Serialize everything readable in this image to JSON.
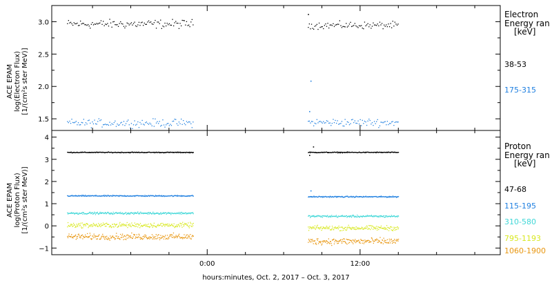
{
  "chart_data": [
    {
      "type": "scatter",
      "name": "electron",
      "ylabel": [
        "ACE EPAM",
        "log(Electron Flux)",
        "[1/(cm²s ster MeV)]"
      ],
      "ylim": [
        1.32,
        3.25
      ],
      "yticks": [
        1.5,
        2.0,
        2.5,
        3.0
      ],
      "ytick_labels": [
        "1.5",
        "2.0",
        "2.5",
        "3.0"
      ],
      "legend_title": [
        "Electron",
        "Energy ran",
        "[keV]"
      ],
      "series": [
        {
          "name": "38-53",
          "color": "#000000",
          "segments": [
            {
              "x_start": -11.0,
              "x_end": -1.1,
              "mean": 2.97,
              "spread": 0.1
            },
            {
              "x_start": 7.9,
              "x_end": 15.0,
              "mean": 2.95,
              "spread": 0.08
            }
          ],
          "extra_points": [
            {
              "x": 7.9,
              "y": 3.12
            }
          ]
        },
        {
          "name": "175-315",
          "color": "#1e7fe0",
          "segments": [
            {
              "x_start": -11.0,
              "x_end": -1.1,
              "mean": 1.44,
              "spread": 0.09
            },
            {
              "x_start": 7.9,
              "x_end": 15.0,
              "mean": 1.45,
              "spread": 0.09
            }
          ],
          "extra_points": [
            {
              "x": 8.1,
              "y": 2.09
            },
            {
              "x": 8.0,
              "y": 1.62
            }
          ]
        }
      ]
    },
    {
      "type": "scatter",
      "name": "proton",
      "ylabel": [
        "ACE EPAM",
        "log(Proton Flux)",
        "[1/(cm²s ster MeV)]"
      ],
      "ylim": [
        -1.3,
        4.3
      ],
      "yticks": [
        -1,
        0,
        1,
        2,
        3,
        4
      ],
      "ytick_labels": [
        "−1",
        "0",
        "1",
        "2",
        "3",
        "4"
      ],
      "legend_title": [
        "Proton",
        "Energy ran",
        "[keV]"
      ],
      "series": [
        {
          "name": "47-68",
          "color": "#000000",
          "segments": [
            {
              "x_start": -11.0,
              "x_end": -1.1,
              "mean": 3.33,
              "spread": 0.03
            },
            {
              "x_start": 7.9,
              "x_end": 15.0,
              "mean": 3.33,
              "spread": 0.03
            }
          ],
          "extra_points": [
            {
              "x": 8.3,
              "y": 3.58
            },
            {
              "x": 8.0,
              "y": 3.2
            }
          ]
        },
        {
          "name": "115-195",
          "color": "#1e7fe0",
          "segments": [
            {
              "x_start": -11.0,
              "x_end": -1.1,
              "mean": 1.37,
              "spread": 0.04
            },
            {
              "x_start": 7.9,
              "x_end": 15.0,
              "mean": 1.33,
              "spread": 0.04
            }
          ],
          "extra_points": [
            {
              "x": 8.1,
              "y": 1.6
            }
          ]
        },
        {
          "name": "310-580",
          "color": "#3fd7d7",
          "segments": [
            {
              "x_start": -11.0,
              "x_end": -1.1,
              "mean": 0.59,
              "spread": 0.07
            },
            {
              "x_start": 7.9,
              "x_end": 15.0,
              "mean": 0.45,
              "spread": 0.07
            }
          ],
          "extra_points": []
        },
        {
          "name": "795-1193",
          "color": "#d8e81f",
          "segments": [
            {
              "x_start": -11.0,
              "x_end": -1.1,
              "mean": 0.05,
              "spread": 0.16
            },
            {
              "x_start": 7.9,
              "x_end": 15.0,
              "mean": -0.08,
              "spread": 0.16
            }
          ],
          "extra_points": []
        },
        {
          "name": "1060-1900",
          "color": "#e8960f",
          "segments": [
            {
              "x_start": -11.0,
              "x_end": -1.1,
              "mean": -0.47,
              "spread": 0.2
            },
            {
              "x_start": 7.9,
              "x_end": 15.0,
              "mean": -0.68,
              "spread": 0.22
            }
          ],
          "extra_points": []
        }
      ]
    }
  ],
  "x_axis": {
    "unit": "hours relative to Oct 3 2017 0:00",
    "xlim": [
      -12.2,
      23.0
    ],
    "major_ticks": [
      0,
      12
    ],
    "major_labels": [
      "0:00",
      "12:00"
    ],
    "minor_ticks": [
      -9,
      -6,
      -3,
      3,
      6,
      9,
      15,
      18,
      21
    ],
    "xlabel": "hours:minutes, Oct.  2, 2017 – Oct.  3, 2017"
  }
}
